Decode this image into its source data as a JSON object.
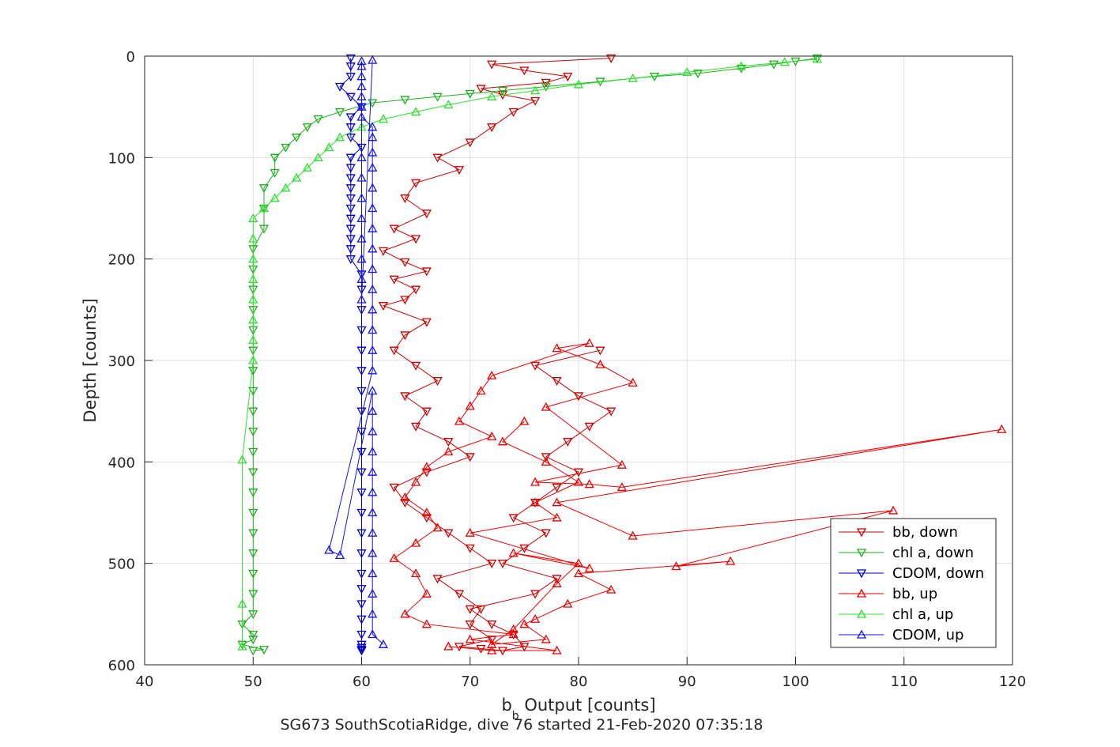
{
  "chart_data": {
    "type": "scatter",
    "title": "SG673 SouthScotiaRidge, dive 76 started 21-Feb-2020 07:35:18",
    "xlabel_main": "b",
    "xlabel_sub": "b",
    "xlabel_rest": " Output [counts]",
    "ylabel": "Depth [counts]",
    "xlim": [
      40,
      120
    ],
    "ylim": [
      0,
      600
    ],
    "y_reversed": true,
    "grid": true,
    "legend_position": "bottom-right",
    "x_ticks": [
      "40",
      "50",
      "60",
      "70",
      "80",
      "90",
      "100",
      "110",
      "120"
    ],
    "y_ticks": [
      "0",
      "100",
      "200",
      "300",
      "400",
      "500",
      "600"
    ],
    "series": [
      {
        "name": "bb, down",
        "color": "#cc0000",
        "marker": "triangle-down",
        "line": true,
        "x": [
          83,
          72,
          75,
          79,
          77,
          71,
          73,
          76,
          74,
          72,
          70,
          67,
          69,
          65,
          64,
          66,
          63,
          65,
          62,
          64,
          66,
          63,
          65,
          64,
          62,
          66,
          64,
          63,
          65,
          67,
          64,
          66,
          65,
          68,
          70,
          66,
          63,
          64,
          66,
          68,
          70,
          72,
          67,
          69,
          71,
          70,
          72,
          69,
          71,
          73,
          75,
          74,
          72,
          70,
          76,
          78,
          73,
          75,
          77,
          74,
          76,
          78,
          80,
          77,
          79,
          81,
          83,
          80,
          78,
          76,
          82
        ],
        "y": [
          2,
          8,
          14,
          20,
          26,
          32,
          38,
          44,
          55,
          70,
          85,
          100,
          112,
          125,
          140,
          155,
          170,
          180,
          192,
          203,
          212,
          220,
          230,
          240,
          246,
          262,
          275,
          290,
          305,
          320,
          335,
          350,
          365,
          380,
          395,
          410,
          425,
          440,
          455,
          470,
          485,
          500,
          515,
          530,
          545,
          560,
          575,
          582,
          584,
          586,
          582,
          570,
          560,
          545,
          530,
          515,
          500,
          485,
          470,
          455,
          440,
          425,
          410,
          395,
          380,
          365,
          350,
          335,
          320,
          305,
          290
        ]
      },
      {
        "name": "chl a, down",
        "color": "#1faf1f",
        "marker": "triangle-down",
        "line": true,
        "x": [
          102,
          100,
          98,
          95,
          91,
          87,
          82,
          77,
          73,
          70,
          67,
          64,
          61,
          58,
          56,
          55,
          54,
          53,
          52,
          52,
          51,
          51,
          51,
          50,
          50,
          50,
          50,
          50,
          50,
          50,
          50,
          50,
          50,
          50,
          50,
          50,
          50,
          50,
          50,
          50,
          50,
          50,
          49,
          50,
          50,
          49,
          51,
          50
        ],
        "y": [
          2,
          5,
          8,
          12,
          17,
          20,
          25,
          30,
          34,
          37,
          40,
          43,
          46,
          55,
          62,
          70,
          80,
          90,
          100,
          115,
          130,
          150,
          170,
          190,
          210,
          230,
          250,
          270,
          290,
          310,
          330,
          350,
          370,
          390,
          410,
          430,
          450,
          470,
          490,
          510,
          530,
          550,
          560,
          570,
          575,
          580,
          585,
          586
        ]
      },
      {
        "name": "CDOM, down",
        "color": "#0000cc",
        "marker": "triangle-down",
        "line": true,
        "x": [
          59,
          59,
          59,
          58,
          59,
          60,
          59,
          59,
          59,
          60,
          59,
          59,
          59,
          59,
          59,
          59,
          59,
          59,
          59,
          59,
          59,
          60,
          60,
          60,
          60,
          60,
          60,
          60,
          60,
          60,
          60,
          60,
          60,
          60,
          60,
          60,
          60,
          60,
          60,
          60,
          60,
          60,
          60,
          60,
          60
        ],
        "y": [
          2,
          10,
          20,
          30,
          40,
          50,
          60,
          70,
          80,
          90,
          100,
          110,
          120,
          130,
          140,
          150,
          160,
          170,
          180,
          190,
          200,
          215,
          230,
          250,
          270,
          290,
          310,
          330,
          350,
          370,
          390,
          410,
          430,
          450,
          470,
          490,
          510,
          525,
          540,
          555,
          570,
          580,
          585,
          586,
          583
        ]
      },
      {
        "name": "bb, up",
        "color": "#ee0000",
        "marker": "triangle-up",
        "line": true,
        "x": [
          68,
          72,
          78,
          70,
          74,
          66,
          64,
          66,
          65,
          63,
          65,
          67,
          66,
          64,
          65,
          66,
          68,
          72,
          69,
          70,
          71,
          72,
          81,
          78,
          82,
          85,
          77,
          84,
          76,
          81,
          84,
          119,
          78,
          85,
          109,
          89,
          94,
          80,
          83,
          79,
          76,
          75,
          77,
          72,
          74,
          78,
          80,
          74,
          81,
          70,
          78,
          76,
          80,
          77,
          73,
          75
        ],
        "y": [
          582,
          586,
          586,
          575,
          570,
          560,
          550,
          530,
          510,
          495,
          480,
          465,
          450,
          435,
          420,
          405,
          390,
          375,
          360,
          345,
          330,
          315,
          283,
          288,
          304,
          322,
          346,
          403,
          420,
          422,
          425,
          368,
          440,
          473,
          448,
          503,
          498,
          510,
          526,
          540,
          555,
          560,
          575,
          580,
          565,
          520,
          500,
          490,
          505,
          470,
          455,
          440,
          420,
          400,
          380,
          360
        ]
      },
      {
        "name": "chl a, up",
        "color": "#2de02d",
        "marker": "triangle-up",
        "line": true,
        "x": [
          49,
          49,
          49,
          50,
          50,
          50,
          50,
          50,
          50,
          50,
          50,
          51,
          52,
          53,
          54,
          55,
          56,
          57,
          58,
          60,
          62,
          65,
          68,
          72,
          76,
          80,
          85,
          90,
          95,
          99,
          102
        ],
        "y": [
          582,
          540,
          398,
          300,
          280,
          260,
          240,
          220,
          200,
          180,
          160,
          150,
          140,
          130,
          120,
          110,
          100,
          90,
          80,
          70,
          62,
          55,
          48,
          40,
          34,
          28,
          22,
          16,
          10,
          6,
          3
        ]
      },
      {
        "name": "CDOM, up",
        "color": "#1414e6",
        "marker": "triangle-up",
        "line": true,
        "x": [
          62,
          61,
          61,
          61,
          61,
          61,
          61,
          61,
          61,
          61,
          61,
          61,
          61,
          61,
          58,
          57,
          61,
          61,
          61,
          61,
          61,
          61,
          61,
          61,
          61,
          61,
          61,
          61,
          61,
          61,
          60,
          60,
          60,
          60,
          60,
          60,
          60,
          60,
          60,
          60,
          60,
          60,
          60,
          60,
          60,
          61
        ],
        "y": [
          580,
          570,
          550,
          530,
          510,
          490,
          470,
          450,
          430,
          410,
          390,
          370,
          350,
          330,
          492,
          487,
          310,
          290,
          270,
          250,
          230,
          210,
          190,
          170,
          150,
          130,
          110,
          95,
          80,
          70,
          60,
          50,
          40,
          30,
          20,
          10,
          5,
          100,
          120,
          140,
          160,
          180,
          200,
          220,
          240,
          4
        ]
      }
    ]
  }
}
